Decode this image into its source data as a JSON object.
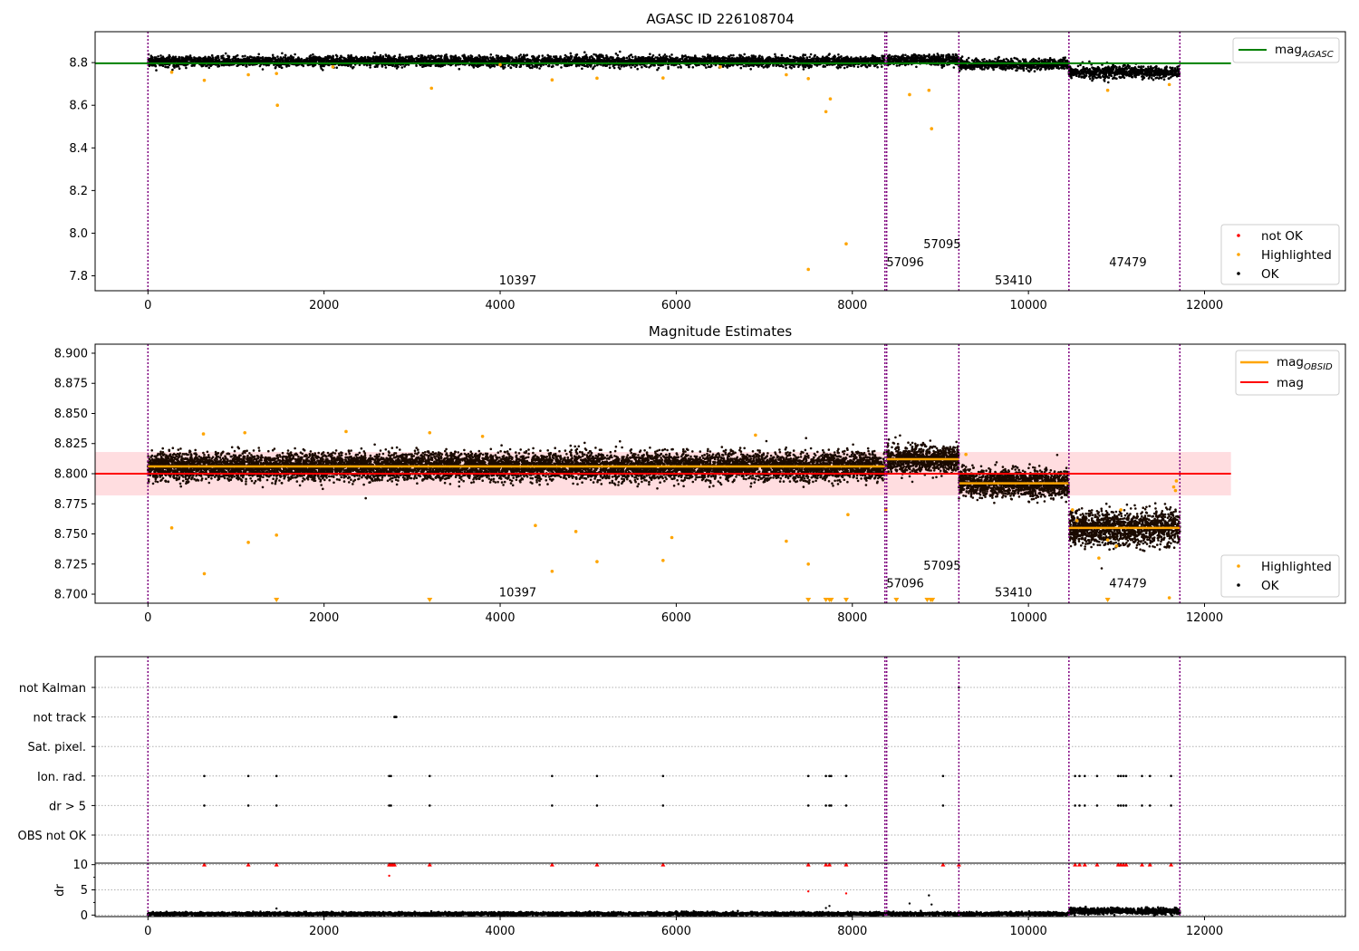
{
  "colors": {
    "ok": "#000000",
    "highlighted": "#ffa500",
    "not_ok": "#ff0000",
    "agasc_mag": "#008000",
    "obsid_mag": "#ffa500",
    "mag": "#ff0000",
    "mag_band": "#ffdde0",
    "obsid_boundary": "#800080",
    "grid": "#b0b0b0"
  },
  "chart_data": [
    {
      "type": "scatter",
      "title": "AGASC ID 226108704",
      "xlim": [
        -600,
        13600
      ],
      "ylim": [
        7.73,
        8.945
      ],
      "x_ticks": [
        0,
        2000,
        4000,
        6000,
        8000,
        10000,
        12000
      ],
      "y_ticks": [
        7.8,
        8.0,
        8.2,
        8.4,
        8.6,
        8.8
      ],
      "y_tick_labels": [
        "7.8",
        "8.0",
        "8.2",
        "8.4",
        "8.6",
        "8.8"
      ],
      "obsid_boundaries": [
        0,
        8370,
        8390,
        9210,
        10460,
        11720
      ],
      "obsid_labels": [
        {
          "text": "10397",
          "x": 4200,
          "y": 7.76
        },
        {
          "text": "57096",
          "x": 8600,
          "y": 7.845
        },
        {
          "text": "57095",
          "x": 9020,
          "y": 7.93
        },
        {
          "text": "53410",
          "x": 9830,
          "y": 7.76
        },
        {
          "text": "47479",
          "x": 11130,
          "y": 7.845
        }
      ],
      "agasc_line": {
        "value": 8.797,
        "x_range": [
          -600,
          12300
        ]
      },
      "ok_segments": [
        {
          "x": [
            0,
            8370
          ],
          "mean": 8.806,
          "spread": 0.012
        },
        {
          "x": [
            8390,
            9210
          ],
          "mean": 8.812,
          "spread": 0.012
        },
        {
          "x": [
            9210,
            10460
          ],
          "mean": 8.792,
          "spread": 0.012
        },
        {
          "x": [
            10460,
            11720
          ],
          "mean": 8.755,
          "spread": 0.014
        }
      ],
      "highlighted_points": [
        {
          "x": 270,
          "y": 8.755
        },
        {
          "x": 640,
          "y": 8.717
        },
        {
          "x": 1140,
          "y": 8.743
        },
        {
          "x": 1460,
          "y": 8.749
        },
        {
          "x": 1470,
          "y": 8.6
        },
        {
          "x": 3220,
          "y": 8.68
        },
        {
          "x": 4590,
          "y": 8.719
        },
        {
          "x": 5100,
          "y": 8.727
        },
        {
          "x": 5850,
          "y": 8.728
        },
        {
          "x": 7250,
          "y": 8.743
        },
        {
          "x": 7500,
          "y": 8.725
        },
        {
          "x": 7500,
          "y": 7.83
        },
        {
          "x": 7700,
          "y": 8.57
        },
        {
          "x": 7750,
          "y": 8.63
        },
        {
          "x": 7930,
          "y": 7.95
        },
        {
          "x": 8650,
          "y": 8.65
        },
        {
          "x": 8870,
          "y": 8.67
        },
        {
          "x": 8900,
          "y": 8.49
        },
        {
          "x": 10900,
          "y": 8.67
        },
        {
          "x": 11600,
          "y": 8.697
        },
        {
          "x": 6500,
          "y": 8.78
        },
        {
          "x": 2100,
          "y": 8.78
        },
        {
          "x": 4000,
          "y": 8.79
        }
      ],
      "legend_lines": [
        {
          "label": "mag",
          "subscript": "AGASC"
        }
      ],
      "legend_points": [
        "not OK",
        "Highlighted",
        "OK"
      ]
    },
    {
      "type": "scatter",
      "title": "Magnitude Estimates",
      "xlim": [
        -600,
        13600
      ],
      "ylim": [
        8.6925,
        8.9075
      ],
      "x_ticks": [
        0,
        2000,
        4000,
        6000,
        8000,
        10000,
        12000
      ],
      "y_ticks": [
        8.7,
        8.725,
        8.75,
        8.775,
        8.8,
        8.825,
        8.85,
        8.875,
        8.9
      ],
      "y_tick_labels": [
        "8.700",
        "8.725",
        "8.750",
        "8.775",
        "8.800",
        "8.825",
        "8.850",
        "8.875",
        "8.900"
      ],
      "obsid_boundaries": [
        0,
        8370,
        8390,
        9210,
        10460,
        11720
      ],
      "obsid_labels": [
        {
          "text": "10397",
          "x": 4200,
          "y": 8.698
        },
        {
          "text": "57096",
          "x": 8600,
          "y": 8.7055
        },
        {
          "text": "57095",
          "x": 9020,
          "y": 8.7205
        },
        {
          "text": "53410",
          "x": 9830,
          "y": 8.698
        },
        {
          "text": "47479",
          "x": 11130,
          "y": 8.7055
        }
      ],
      "mag": 8.8,
      "mag_band": [
        8.782,
        8.818
      ],
      "mag_x_range": [
        -600,
        12300
      ],
      "obsid_means": [
        {
          "x": [
            0,
            8370
          ],
          "mean": 8.806
        },
        {
          "x": [
            8390,
            9210
          ],
          "mean": 8.812
        },
        {
          "x": [
            9210,
            10460
          ],
          "mean": 8.792
        },
        {
          "x": [
            10460,
            11720
          ],
          "mean": 8.755
        }
      ],
      "ok_segments": [
        {
          "x": [
            0,
            8370
          ],
          "mean": 8.806,
          "spread": 0.0055
        },
        {
          "x": [
            8390,
            9210
          ],
          "mean": 8.812,
          "spread": 0.0055
        },
        {
          "x": [
            9210,
            10460
          ],
          "mean": 8.792,
          "spread": 0.0055
        },
        {
          "x": [
            10460,
            11720
          ],
          "mean": 8.755,
          "spread": 0.007
        }
      ],
      "highlighted_points": [
        {
          "x": 270,
          "y": 8.755
        },
        {
          "x": 640,
          "y": 8.717
        },
        {
          "x": 1140,
          "y": 8.743
        },
        {
          "x": 1460,
          "y": 8.749
        },
        {
          "x": 3200,
          "y": 8.834
        },
        {
          "x": 4590,
          "y": 8.719
        },
        {
          "x": 4400,
          "y": 8.757
        },
        {
          "x": 5100,
          "y": 8.727
        },
        {
          "x": 4860,
          "y": 8.752
        },
        {
          "x": 5850,
          "y": 8.728
        },
        {
          "x": 5950,
          "y": 8.747
        },
        {
          "x": 7250,
          "y": 8.744
        },
        {
          "x": 7500,
          "y": 8.725
        },
        {
          "x": 7950,
          "y": 8.766
        },
        {
          "x": 8380,
          "y": 8.77
        },
        {
          "x": 9290,
          "y": 8.816
        },
        {
          "x": 10500,
          "y": 8.77
        },
        {
          "x": 10550,
          "y": 8.761
        },
        {
          "x": 10800,
          "y": 8.73
        },
        {
          "x": 10900,
          "y": 8.745
        },
        {
          "x": 11000,
          "y": 8.74
        },
        {
          "x": 11050,
          "y": 8.77
        },
        {
          "x": 11600,
          "y": 8.697
        },
        {
          "x": 11650,
          "y": 8.789
        },
        {
          "x": 11670,
          "y": 8.786
        },
        {
          "x": 11680,
          "y": 8.794
        },
        {
          "x": 630,
          "y": 8.833
        },
        {
          "x": 1100,
          "y": 8.834
        },
        {
          "x": 2250,
          "y": 8.835
        },
        {
          "x": 3800,
          "y": 8.831
        },
        {
          "x": 6900,
          "y": 8.832
        }
      ],
      "below_range_markers": [
        1460,
        3200,
        7500,
        7700,
        7740,
        7760,
        7930,
        8500,
        8850,
        8890,
        8910,
        10900
      ],
      "legend_lines": [
        {
          "label": "mag",
          "subscript": "OBSID"
        },
        {
          "label": "mag",
          "subscript": ""
        }
      ],
      "legend_points": [
        "Highlighted",
        "OK"
      ]
    },
    {
      "type": "scatter",
      "title": "",
      "xlim": [
        -600,
        13600
      ],
      "x_ticks": [
        0,
        2000,
        4000,
        6000,
        8000,
        10000,
        12000
      ],
      "flag_rows": [
        "not Kalman",
        "not track",
        "Sat. pixel.",
        "Ion. rad.",
        "dr > 5",
        "OBS not OK"
      ],
      "obsid_boundaries": [
        0,
        8370,
        8390,
        9210,
        10460,
        11720
      ],
      "flag_points": [
        {
          "row": "not Kalman",
          "x": [
            9210
          ]
        },
        {
          "row": "not track",
          "x": [
            2800,
            2810,
            2820
          ]
        },
        {
          "row": "Ion. rad.",
          "x": [
            640,
            1140,
            1460,
            2740,
            2760,
            3200,
            4590,
            5100,
            5850,
            7500,
            7700,
            7740,
            7760,
            7930,
            9030,
            10530,
            10580,
            10640,
            10780,
            11020,
            11050,
            11080,
            11110,
            11290,
            11380,
            11620
          ]
        },
        {
          "row": "dr > 5",
          "x": [
            640,
            1140,
            1460,
            2740,
            2760,
            3200,
            4590,
            5100,
            5850,
            7500,
            7700,
            7740,
            7760,
            7930,
            9030,
            10530,
            10580,
            10640,
            10780,
            11020,
            11050,
            11080,
            11110,
            11290,
            11380,
            11620
          ]
        }
      ],
      "dr_panel": {
        "ylabel": "dr",
        "ylim": [
          -0.3,
          10.3
        ],
        "y_ticks": [
          0,
          5,
          10
        ],
        "y_tick_labels": [
          "0",
          "5",
          "10"
        ],
        "capped_points_at_10": [
          640,
          1140,
          1460,
          2740,
          2760,
          2780,
          2800,
          3200,
          4590,
          5100,
          5850,
          7500,
          7700,
          7740,
          7930,
          9030,
          9210,
          10530,
          10580,
          10640,
          10780,
          11020,
          11050,
          11080,
          11110,
          11290,
          11380,
          11620
        ],
        "outlier_points": [
          {
            "x": 2740,
            "y": 7.8
          },
          {
            "x": 7500,
            "y": 4.7
          },
          {
            "x": 7930,
            "y": 4.3
          },
          {
            "x": 1460,
            "y": 1.3
          },
          {
            "x": 7700,
            "y": 1.4
          },
          {
            "x": 7740,
            "y": 1.8
          },
          {
            "x": 8650,
            "y": 2.3
          },
          {
            "x": 8870,
            "y": 3.9
          },
          {
            "x": 8900,
            "y": 2.1
          }
        ],
        "ok_segments": [
          {
            "x": [
              0,
              10460
            ],
            "mean": 0.25,
            "spread": 0.15
          },
          {
            "x": [
              10460,
              11720
            ],
            "mean": 0.8,
            "spread": 0.3
          }
        ]
      }
    }
  ]
}
